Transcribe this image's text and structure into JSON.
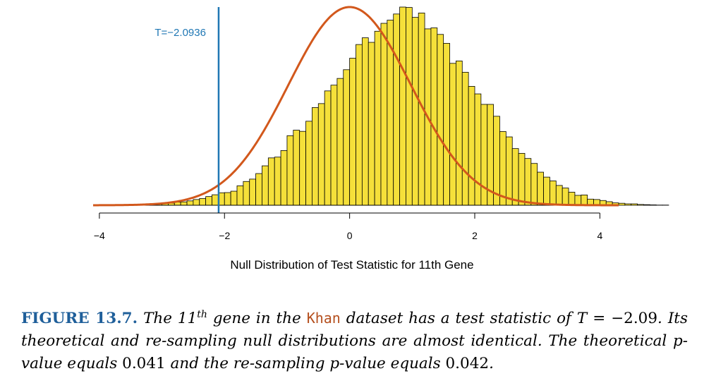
{
  "chart_data": {
    "type": "bar",
    "title": "",
    "xlabel": "Null Distribution of Test Statistic for 11th Gene",
    "ylabel": "",
    "xlim": [
      -4.1,
      4.3
    ],
    "ylim": [
      0,
      1.0
    ],
    "xticks": [
      -4,
      -2,
      0,
      2,
      4
    ],
    "xtick_labels": [
      "−4",
      "−2",
      "0",
      "2",
      "4"
    ],
    "bin_width": 0.1,
    "bins_start": -3.6,
    "values": [
      0.002,
      0.003,
      0.004,
      0.005,
      0.005,
      0.007,
      0.011,
      0.011,
      0.016,
      0.017,
      0.022,
      0.029,
      0.034,
      0.044,
      0.053,
      0.063,
      0.064,
      0.071,
      0.098,
      0.12,
      0.132,
      0.16,
      0.199,
      0.239,
      0.243,
      0.276,
      0.351,
      0.379,
      0.373,
      0.424,
      0.493,
      0.513,
      0.577,
      0.606,
      0.64,
      0.684,
      0.742,
      0.811,
      0.845,
      0.822,
      0.878,
      0.918,
      0.934,
      0.965,
      1.0,
      0.998,
      0.948,
      0.97,
      0.89,
      0.895,
      0.862,
      0.817,
      0.716,
      0.728,
      0.671,
      0.6,
      0.562,
      0.509,
      0.509,
      0.449,
      0.372,
      0.345,
      0.286,
      0.262,
      0.236,
      0.211,
      0.167,
      0.142,
      0.123,
      0.1,
      0.087,
      0.066,
      0.05,
      0.052,
      0.031,
      0.029,
      0.024,
      0.018,
      0.012,
      0.01,
      0.007,
      0.007,
      0.004,
      0.003,
      0.002,
      0.001,
      0.001
    ],
    "series": [
      {
        "name": "re-sampling null distribution",
        "kind": "histogram",
        "color": "#f5e03a"
      },
      {
        "name": "theoretical null distribution",
        "kind": "line",
        "color": "#d2581c",
        "mean": 0.0,
        "sd": 0.98
      }
    ],
    "annotations": [
      {
        "type": "vline",
        "x": -2.0936,
        "label": "T=−2.0936",
        "color": "#1f77b4"
      }
    ]
  },
  "caption": {
    "label": "FIGURE 13.7.",
    "seg1": "The 11",
    "seg1b": "th",
    "seg2": " gene in the ",
    "code": "Khan",
    "seg3": " dataset has a test statistic of",
    "math_T": "T",
    "eq": " = −2.09",
    "seg4": ". Its theoretical and re-sampling null distributions are almost identical. The theoretical p-value equals ",
    "pval1": "0.041",
    "seg5": " and the re-sampling p-value equals ",
    "pval2": "0.042",
    "seg6": "."
  }
}
